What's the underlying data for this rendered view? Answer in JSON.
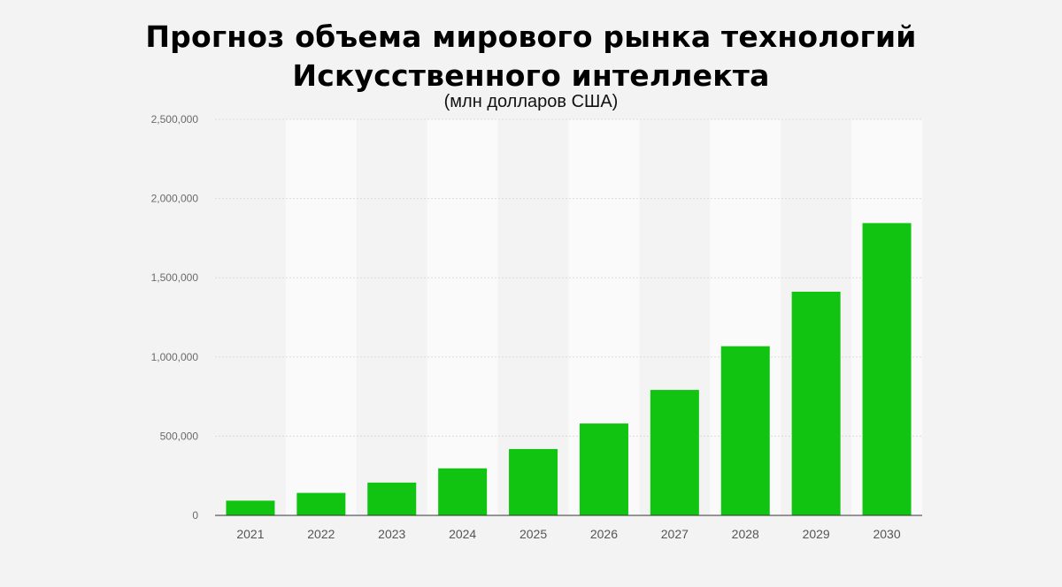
{
  "title_line1": "Прогноз объема мирового рынка технологий",
  "title_line2": "Искусственного интеллекта",
  "subtitle": "(млн долларов США)",
  "colors": {
    "bar": "#11c411",
    "background": "#f3f3f3",
    "band": "#fafafa",
    "grid": "#dcdcdc",
    "axis": "#333333"
  },
  "chart_data": {
    "type": "bar",
    "categories": [
      "2021",
      "2022",
      "2023",
      "2024",
      "2025",
      "2026",
      "2027",
      "2028",
      "2029",
      "2030"
    ],
    "values": [
      93000,
      142000,
      207000,
      297000,
      419000,
      580000,
      792000,
      1068000,
      1412000,
      1845000
    ],
    "ylim": [
      0,
      2500000
    ],
    "yticks": [
      0,
      500000,
      1000000,
      1500000,
      2000000,
      2500000
    ],
    "ytick_labels": [
      "0",
      "500,000",
      "1,000,000",
      "1,500,000",
      "2,000,000",
      "2,500,000"
    ],
    "grid": true,
    "legend": "none"
  }
}
